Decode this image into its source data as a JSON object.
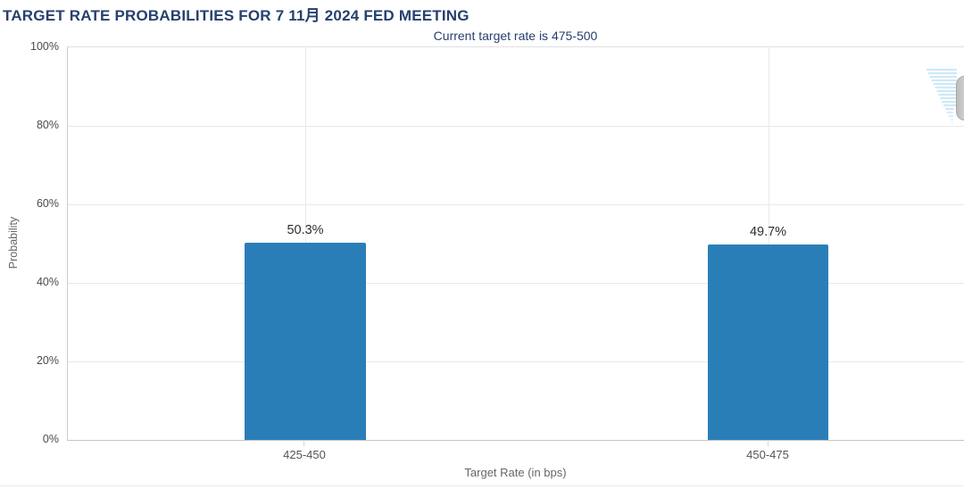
{
  "header": {
    "title": "TARGET RATE PROBABILITIES FOR 7 11月 2024 FED MEETING",
    "subtitle": "Current target rate is 475-500"
  },
  "chart_data": {
    "type": "bar",
    "title": "TARGET RATE PROBABILITIES FOR 7 11月 2024 FED MEETING",
    "subtitle": "Current target rate is 475-500",
    "categories": [
      "425-450",
      "450-475"
    ],
    "values": [
      50.3,
      49.7
    ],
    "value_labels": [
      "50.3%",
      "49.7%"
    ],
    "series": [
      {
        "name": "Probability",
        "values": [
          50.3,
          49.7
        ]
      }
    ],
    "xlabel": "Target Rate (in bps)",
    "ylabel": "Probability",
    "ylim": [
      0,
      100
    ],
    "yticks": [
      "0%",
      "20%",
      "40%",
      "60%",
      "80%",
      "100%"
    ],
    "grid": true,
    "legend": false,
    "bar_color": "#2A7EB8"
  },
  "colors": {
    "title_navy": "#26406D",
    "bar_blue": "#2A7EB8",
    "grid_gray": "#E9E9E9",
    "axis_gray": "#C6C6C6",
    "tick_text": "#4A4A4A",
    "axis_title_text": "#666666",
    "watermark_light_blue": "#CDE9F8"
  },
  "icons": {
    "watermark": "cme-feather-watermark-icon",
    "edge_handle": "edge-handle"
  }
}
